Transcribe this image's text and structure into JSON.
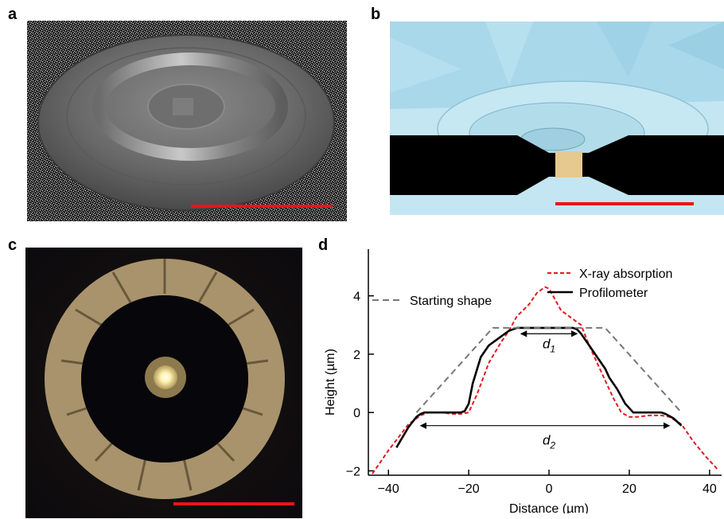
{
  "panels": {
    "a": {
      "label": "a",
      "scale_bar_color": "#e8141b"
    },
    "b": {
      "label": "b",
      "scale_bar_color": "#e8141b",
      "colors": {
        "background": "#c3e6f2",
        "substrate": "#000000",
        "sample": "#e6c98f"
      }
    },
    "c": {
      "label": "c",
      "scale_bar_color": "#e8141b"
    },
    "d": {
      "label": "d"
    }
  },
  "chart_data": {
    "type": "line",
    "xlabel": "Distance (µm)",
    "ylabel": "Height (µm)",
    "xlim": [
      -45,
      43
    ],
    "ylim": [
      -2.15,
      5.6
    ],
    "xticks": [
      -40,
      -20,
      0,
      20,
      40
    ],
    "yticks": [
      -2,
      0,
      2,
      4
    ],
    "legend_position": "top-right",
    "series": [
      {
        "name": "X-ray absorption",
        "style": "dashed",
        "color": "#e01b24",
        "x": [
          -44,
          -40,
          -35,
          -32,
          -30,
          -27,
          -24,
          -22,
          -20,
          -18,
          -15,
          -12,
          -10,
          -8,
          -5,
          -3,
          -1,
          0,
          1,
          3,
          5,
          8,
          10,
          13,
          16,
          18,
          20,
          22,
          25,
          28,
          30,
          33,
          36,
          39,
          42
        ],
        "y": [
          -2.1,
          -1.3,
          -0.4,
          -0.1,
          0.0,
          0.0,
          -0.05,
          -0.05,
          0.0,
          0.6,
          1.7,
          2.4,
          2.8,
          3.3,
          3.7,
          4.1,
          4.3,
          4.25,
          4.0,
          3.5,
          3.3,
          3.0,
          2.3,
          1.4,
          0.5,
          0.0,
          -0.15,
          -0.15,
          -0.1,
          -0.1,
          -0.15,
          -0.4,
          -1.0,
          -1.5,
          -1.95
        ]
      },
      {
        "name": "Profilometer",
        "style": "solid",
        "color": "#000000",
        "x": [
          -38,
          -35,
          -33,
          -32,
          -31,
          -29,
          -22,
          -21,
          -20,
          -19,
          -17,
          -15,
          -12,
          -10,
          -9,
          -8,
          6,
          7,
          8,
          10,
          12,
          14,
          15,
          17,
          19,
          21,
          22,
          28,
          29,
          31,
          33
        ],
        "y": [
          -1.2,
          -0.5,
          -0.15,
          -0.05,
          0.0,
          0.0,
          0.0,
          0.05,
          0.3,
          1.0,
          1.9,
          2.3,
          2.6,
          2.8,
          2.85,
          2.9,
          2.9,
          2.85,
          2.7,
          2.3,
          1.9,
          1.5,
          1.2,
          0.8,
          0.3,
          0.0,
          0.0,
          0.0,
          -0.05,
          -0.2,
          -0.45
        ]
      },
      {
        "name": "Starting shape",
        "style": "dashed",
        "color": "#777777",
        "x": [
          -33,
          -14,
          14,
          33
        ],
        "y": [
          0.0,
          2.9,
          2.9,
          0.0
        ]
      }
    ],
    "annotations": [
      {
        "text": "d",
        "subscript": "1",
        "x": 0,
        "y": 2.2,
        "arrow_x": [
          -7,
          7
        ],
        "arrow_y": 2.7
      },
      {
        "text": "d",
        "subscript": "2",
        "x": 0,
        "y": -1.1,
        "arrow_x": [
          -32,
          30
        ],
        "arrow_y": -0.45
      }
    ]
  }
}
